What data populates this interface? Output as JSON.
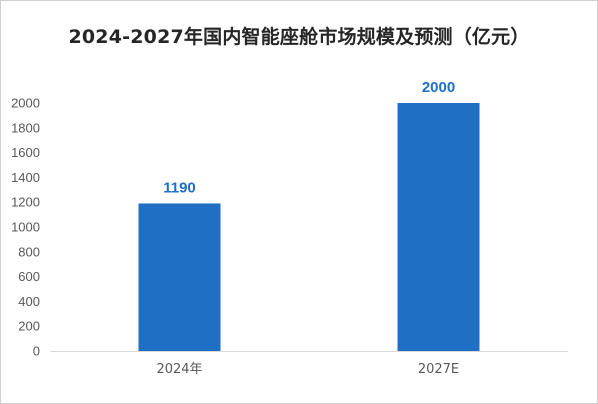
{
  "chart_data": {
    "type": "bar",
    "title": "2024-2027年国内智能座舱市场规模及预测（亿元）",
    "xlabel": "",
    "ylabel": "",
    "categories": [
      "2024年",
      "2027E"
    ],
    "values": [
      1190,
      2000
    ],
    "data_labels": [
      "1190",
      "2000"
    ],
    "ylim": [
      0,
      2000
    ],
    "yticks": [
      0,
      200,
      400,
      600,
      800,
      1000,
      1200,
      1400,
      1600,
      1800,
      2000
    ],
    "grid": false,
    "legend": "none",
    "colors": {
      "bar": "#1F6FC5",
      "data_label": "#1F6FC5",
      "axis": "#d9d9d9",
      "title": "#262626",
      "tick": "#595959"
    }
  }
}
